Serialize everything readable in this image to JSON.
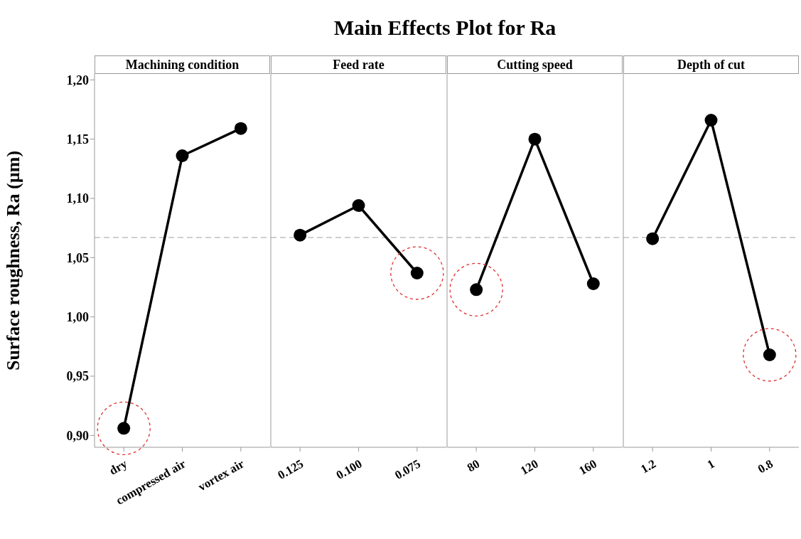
{
  "chart_data": [
    {
      "type": "other",
      "title": "Main Effects Plot for Ra"
    },
    {
      "type": "line",
      "subtitle": "Machining condition",
      "ylabel": "Surface roughness, Ra (µm)",
      "categories": [
        "dry",
        "compressed air",
        "vortex air"
      ],
      "series": [
        {
          "color": "#000000",
          "values": [
            0.906,
            1.136,
            1.159
          ]
        }
      ],
      "ylim": [
        0.89,
        1.205
      ],
      "yticks": [
        {
          "value": 0.9,
          "label": "0,90"
        },
        {
          "value": 0.95,
          "label": "0,95"
        },
        {
          "value": 1.0,
          "label": "1,00"
        },
        {
          "value": 1.05,
          "label": "1,05"
        },
        {
          "value": 1.1,
          "label": "1,10"
        },
        {
          "value": 1.15,
          "label": "1,15"
        },
        {
          "value": 1.2,
          "label": "1,20"
        }
      ],
      "ref_lines": [
        {
          "axis": "y",
          "value": 1.067,
          "color": "#a0a0a0",
          "line_style": "dashed"
        }
      ],
      "marker": "circle",
      "grid": false
    },
    {
      "type": "line",
      "subtitle": "Feed rate",
      "categories": [
        "0.125",
        "0.100",
        "0.075"
      ],
      "series": [
        {
          "color": "#000000",
          "values": [
            1.069,
            1.094,
            1.037
          ]
        }
      ],
      "ylim": [
        0.89,
        1.205
      ],
      "tick_labels": "x",
      "ref_lines": [
        {
          "axis": "y",
          "value": 1.067,
          "color": "#a0a0a0",
          "line_style": "dashed"
        }
      ],
      "marker": "circle",
      "grid": false
    },
    {
      "type": "line",
      "subtitle": "Cutting speed",
      "categories": [
        "80",
        "120",
        "160"
      ],
      "series": [
        {
          "color": "#000000",
          "values": [
            1.023,
            1.15,
            1.028
          ]
        }
      ],
      "ylim": [
        0.89,
        1.205
      ],
      "tick_labels": "x",
      "ref_lines": [
        {
          "axis": "y",
          "value": 1.067,
          "color": "#a0a0a0",
          "line_style": "dashed"
        }
      ],
      "marker": "circle",
      "grid": false
    },
    {
      "type": "line",
      "subtitle": "Depth of cut",
      "categories": [
        "1.2",
        "1",
        "0.8"
      ],
      "series": [
        {
          "color": "#000000",
          "values": [
            1.066,
            1.166,
            0.968
          ]
        }
      ],
      "ylim": [
        0.89,
        1.205
      ],
      "tick_labels": "x",
      "ref_lines": [
        {
          "axis": "y",
          "value": 1.067,
          "color": "#a0a0a0",
          "line_style": "dashed"
        }
      ],
      "marker": "circle",
      "grid": false
    }
  ]
}
